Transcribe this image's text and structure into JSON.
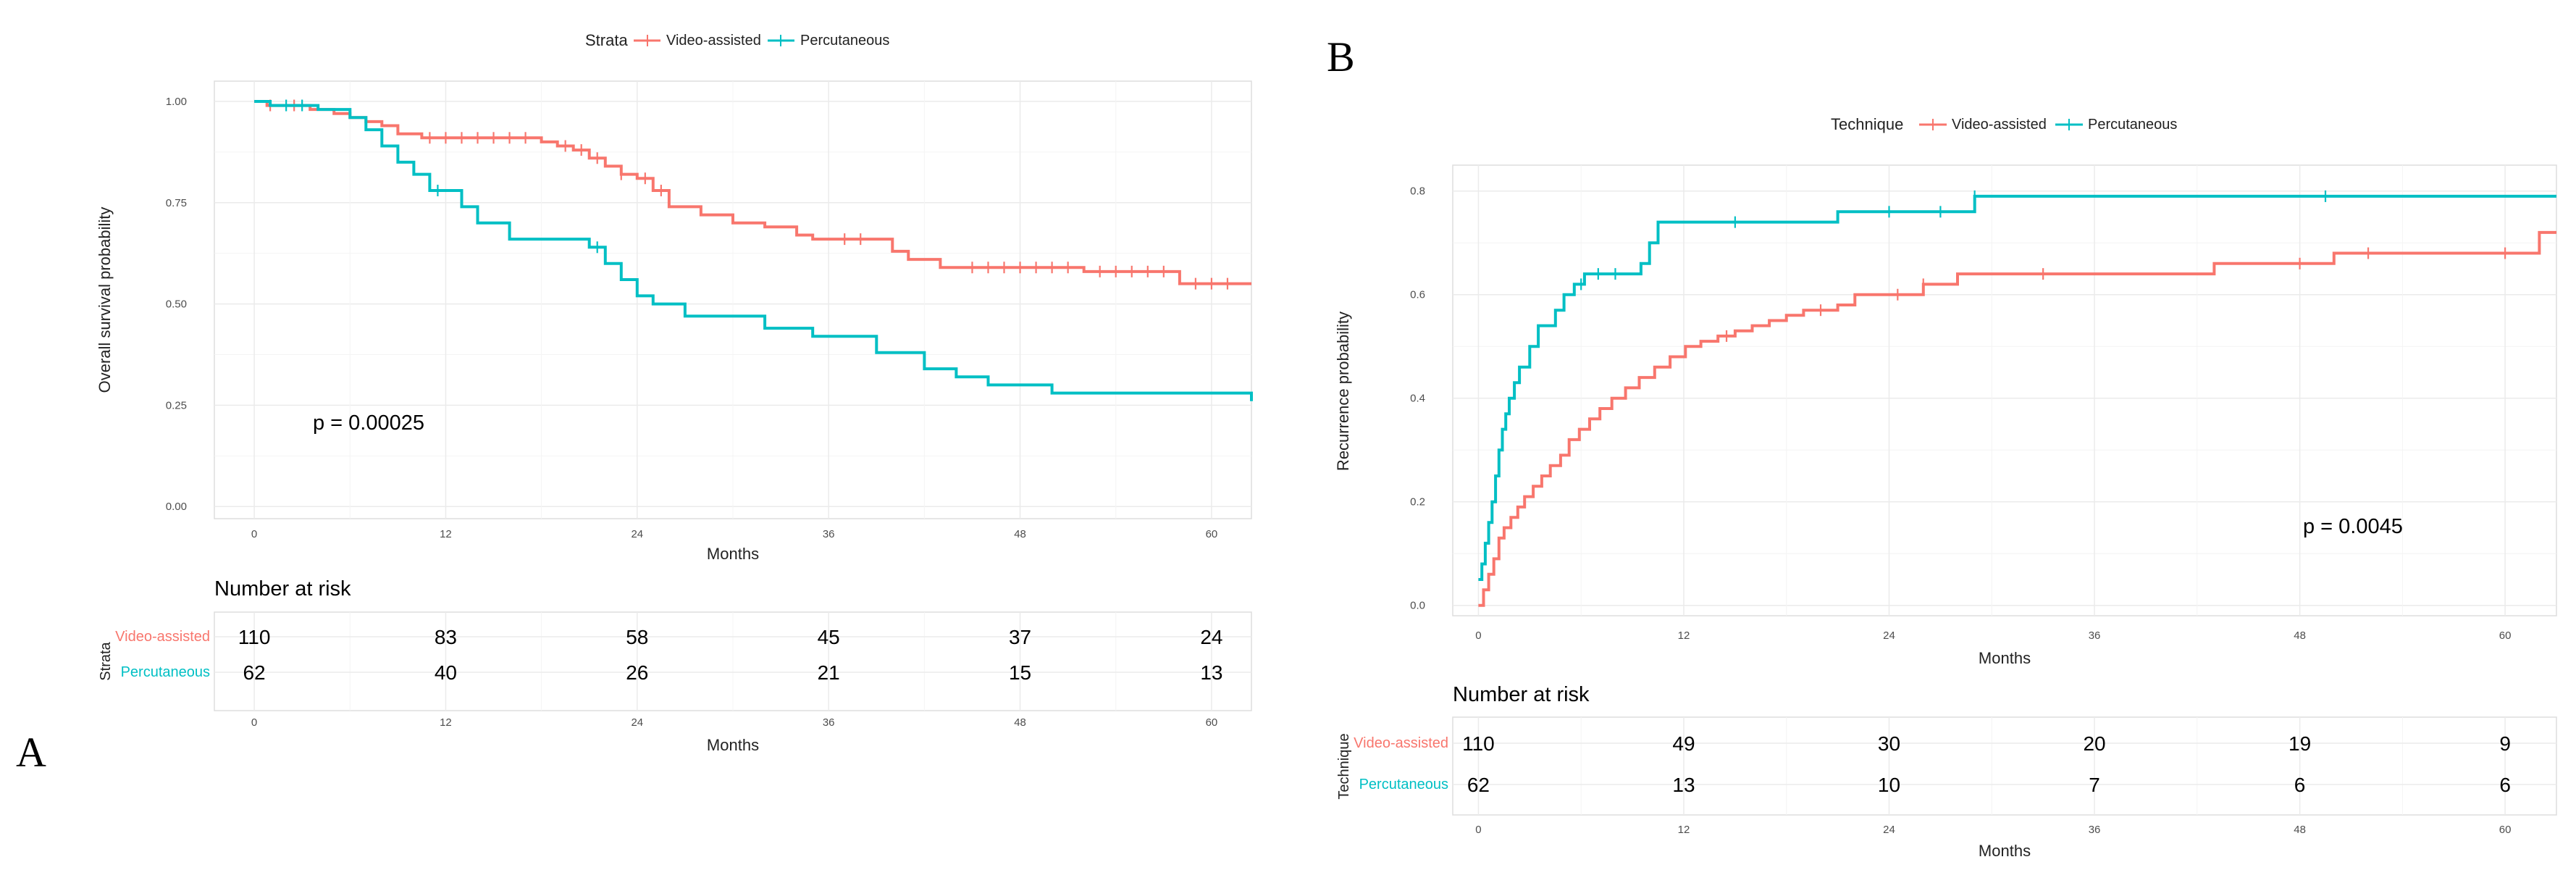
{
  "colors": {
    "video": "#F8766D",
    "perc": "#00BFC4"
  },
  "chart_data": [
    {
      "panel": "A",
      "type": "line",
      "step": "survival",
      "legend": {
        "title": "Strata",
        "entries": [
          "Video-assisted",
          "Percutaneous"
        ],
        "position": "top"
      },
      "xlabel": "Months",
      "ylabel": "Overall survival probability",
      "xlim": [
        -2.5,
        62.5
      ],
      "ylim": [
        -0.03,
        1.05
      ],
      "xticks": [
        0,
        12,
        24,
        36,
        48,
        60
      ],
      "xtick_labels": [
        "0",
        "12",
        "24",
        "36",
        "48",
        "60"
      ],
      "yticks": [
        0,
        0.25,
        0.5,
        0.75,
        1
      ],
      "ytick_labels": [
        "0.00",
        "0.25",
        "0.50",
        "0.75",
        "1.00"
      ],
      "grid": true,
      "pvalue": "p = 0.00025",
      "series": [
        {
          "name": "Video-assisted",
          "color": "#F8766D",
          "points": [
            [
              0,
              1
            ],
            [
              0.8,
              0.99
            ],
            [
              3.5,
              0.98
            ],
            [
              5,
              0.97
            ],
            [
              6,
              0.96
            ],
            [
              7,
              0.95
            ],
            [
              8,
              0.94
            ],
            [
              9,
              0.92
            ],
            [
              10.5,
              0.91
            ],
            [
              18,
              0.9
            ],
            [
              19,
              0.89
            ],
            [
              20,
              0.88
            ],
            [
              21,
              0.86
            ],
            [
              22,
              0.84
            ],
            [
              23,
              0.82
            ],
            [
              24,
              0.81
            ],
            [
              25,
              0.78
            ],
            [
              26,
              0.74
            ],
            [
              28,
              0.72
            ],
            [
              30,
              0.7
            ],
            [
              32,
              0.69
            ],
            [
              34,
              0.67
            ],
            [
              35,
              0.66
            ],
            [
              40,
              0.63
            ],
            [
              41,
              0.61
            ],
            [
              43,
              0.59
            ],
            [
              52,
              0.58
            ],
            [
              58,
              0.55
            ],
            [
              62.5,
              0.55
            ]
          ],
          "censor": [
            1,
            2.5,
            11,
            12,
            13,
            14,
            15,
            16,
            17,
            19.5,
            20.5,
            21.5,
            23,
            24.5,
            25.5,
            37,
            38,
            45,
            46,
            47,
            48,
            49,
            50,
            51,
            53,
            54,
            55,
            56,
            57,
            59,
            60,
            61
          ]
        },
        {
          "name": "Percutaneous",
          "color": "#00BFC4",
          "points": [
            [
              0,
              1
            ],
            [
              1,
              0.99
            ],
            [
              4,
              0.98
            ],
            [
              6,
              0.96
            ],
            [
              7,
              0.93
            ],
            [
              8,
              0.89
            ],
            [
              9,
              0.85
            ],
            [
              10,
              0.82
            ],
            [
              11,
              0.78
            ],
            [
              13,
              0.74
            ],
            [
              14,
              0.7
            ],
            [
              16,
              0.66
            ],
            [
              21,
              0.64
            ],
            [
              22,
              0.6
            ],
            [
              23,
              0.56
            ],
            [
              24,
              0.52
            ],
            [
              25,
              0.5
            ],
            [
              27,
              0.47
            ],
            [
              32,
              0.44
            ],
            [
              35,
              0.42
            ],
            [
              39,
              0.38
            ],
            [
              42,
              0.34
            ],
            [
              44,
              0.32
            ],
            [
              46,
              0.3
            ],
            [
              50,
              0.28
            ],
            [
              62.5,
              0.26
            ]
          ],
          "censor": [
            2,
            3,
            11.5,
            21.5
          ]
        }
      ],
      "risk_table": {
        "title": "Number at risk",
        "strata_label": "Strata",
        "xlabel": "Months",
        "rows": [
          {
            "name": "Video-assisted",
            "values": [
              "110",
              "83",
              "58",
              "45",
              "37",
              "24"
            ]
          },
          {
            "name": "Percutaneous",
            "values": [
              "62",
              "40",
              "26",
              "21",
              "15",
              "13"
            ]
          }
        ]
      }
    },
    {
      "panel": "B",
      "type": "line",
      "step": "cumulative",
      "legend": {
        "title": "Technique",
        "entries": [
          "Video-assisted",
          "Percutaneous"
        ],
        "position": "top"
      },
      "xlabel": "Months",
      "ylabel": "Recurrence probability",
      "xlim": [
        -1.5,
        63
      ],
      "ylim": [
        -0.02,
        0.85
      ],
      "xticks": [
        0,
        12,
        24,
        36,
        48,
        60
      ],
      "xtick_labels": [
        "0",
        "12",
        "24",
        "36",
        "48",
        "60"
      ],
      "yticks": [
        0,
        0.2,
        0.4,
        0.6,
        0.8
      ],
      "ytick_labels": [
        "0.0",
        "0.2",
        "0.4",
        "0.6",
        "0.8"
      ],
      "grid": true,
      "pvalue": "p = 0.0045",
      "series": [
        {
          "name": "Video-assisted",
          "color": "#F8766D",
          "points": [
            [
              0,
              0
            ],
            [
              0.3,
              0.03
            ],
            [
              0.6,
              0.06
            ],
            [
              0.9,
              0.09
            ],
            [
              1.2,
              0.13
            ],
            [
              1.5,
              0.15
            ],
            [
              1.9,
              0.17
            ],
            [
              2.3,
              0.19
            ],
            [
              2.7,
              0.21
            ],
            [
              3.2,
              0.23
            ],
            [
              3.7,
              0.25
            ],
            [
              4.2,
              0.27
            ],
            [
              4.8,
              0.29
            ],
            [
              5.3,
              0.32
            ],
            [
              5.9,
              0.34
            ],
            [
              6.5,
              0.36
            ],
            [
              7.1,
              0.38
            ],
            [
              7.8,
              0.4
            ],
            [
              8.6,
              0.42
            ],
            [
              9.4,
              0.44
            ],
            [
              10.3,
              0.46
            ],
            [
              11.2,
              0.48
            ],
            [
              12.1,
              0.5
            ],
            [
              13,
              0.51
            ],
            [
              14,
              0.52
            ],
            [
              15,
              0.53
            ],
            [
              16,
              0.54
            ],
            [
              17,
              0.55
            ],
            [
              18,
              0.56
            ],
            [
              19,
              0.57
            ],
            [
              21,
              0.58
            ],
            [
              22,
              0.6
            ],
            [
              26,
              0.62
            ],
            [
              28,
              0.64
            ],
            [
              43,
              0.66
            ],
            [
              50,
              0.68
            ],
            [
              62,
              0.72
            ],
            [
              63,
              0.72
            ]
          ],
          "censor": [
            14.5,
            20,
            24.5,
            26,
            33,
            48,
            52,
            60
          ]
        },
        {
          "name": "Percutaneous",
          "color": "#00BFC4",
          "points": [
            [
              0,
              0.05
            ],
            [
              0.2,
              0.08
            ],
            [
              0.4,
              0.12
            ],
            [
              0.6,
              0.16
            ],
            [
              0.8,
              0.2
            ],
            [
              1,
              0.25
            ],
            [
              1.2,
              0.3
            ],
            [
              1.4,
              0.34
            ],
            [
              1.6,
              0.37
            ],
            [
              1.8,
              0.4
            ],
            [
              2.1,
              0.43
            ],
            [
              2.4,
              0.46
            ],
            [
              3,
              0.5
            ],
            [
              3.5,
              0.54
            ],
            [
              4.5,
              0.57
            ],
            [
              5,
              0.6
            ],
            [
              5.6,
              0.62
            ],
            [
              6.2,
              0.64
            ],
            [
              9.5,
              0.66
            ],
            [
              10,
              0.7
            ],
            [
              10.5,
              0.74
            ],
            [
              21,
              0.76
            ],
            [
              29,
              0.79
            ],
            [
              63,
              0.79
            ]
          ],
          "censor": [
            6,
            7,
            8,
            15,
            24,
            27,
            29,
            49.5
          ]
        }
      ],
      "risk_table": {
        "title": "Number at risk",
        "strata_label": "Technique",
        "xlabel": "Months",
        "rows": [
          {
            "name": "Video-assisted",
            "values": [
              "110",
              "49",
              "30",
              "20",
              "19",
              "9"
            ]
          },
          {
            "name": "Percutaneous",
            "values": [
              "62",
              "13",
              "10",
              "7",
              "6",
              "6"
            ]
          }
        ]
      }
    }
  ]
}
